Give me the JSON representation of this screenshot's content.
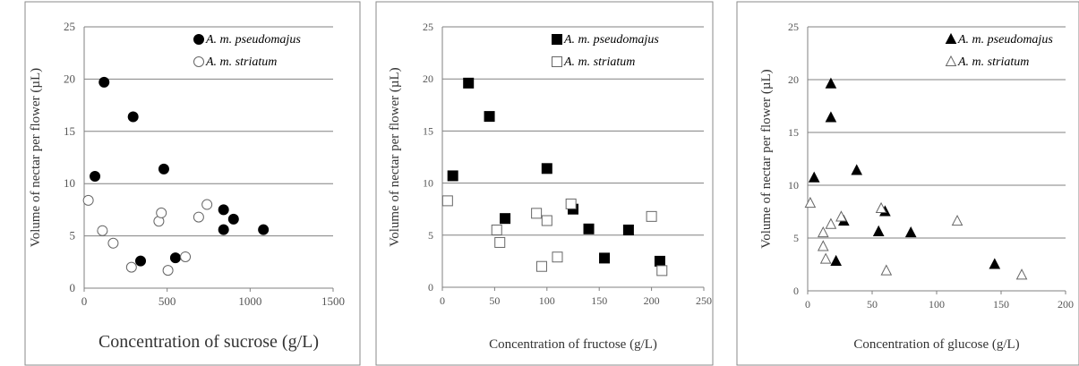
{
  "chart_data": [
    {
      "type": "scatter",
      "xlabel": "Concentration of sucrose (g/L)",
      "ylabel": "Volume of nectar per flower (µL)",
      "xlim": [
        0,
        1500
      ],
      "ylim": [
        0,
        25
      ],
      "xticks": [
        0,
        500,
        1000,
        1500
      ],
      "yticks": [
        0,
        5,
        10,
        15,
        20,
        25
      ],
      "grid": "horizontal",
      "legend_position": "top-right",
      "series": [
        {
          "name": "A. m. pseudomajus",
          "marker": "circle-filled",
          "points": [
            [
              65,
              10.7
            ],
            [
              120,
              19.7
            ],
            [
              295,
              16.4
            ],
            [
              480,
              11.4
            ],
            [
              840,
              7.5
            ],
            [
              900,
              6.6
            ],
            [
              840,
              5.6
            ],
            [
              1080,
              5.6
            ],
            [
              550,
              2.9
            ],
            [
              340,
              2.6
            ]
          ]
        },
        {
          "name": "A. m. striatum",
          "marker": "circle-open",
          "points": [
            [
              25,
              8.4
            ],
            [
              110,
              5.5
            ],
            [
              175,
              4.3
            ],
            [
              285,
              2.0
            ],
            [
              450,
              6.4
            ],
            [
              465,
              7.2
            ],
            [
              505,
              1.7
            ],
            [
              610,
              3.0
            ],
            [
              690,
              6.8
            ],
            [
              740,
              8.0
            ]
          ]
        }
      ]
    },
    {
      "type": "scatter",
      "xlabel": "Concentration of fructose (g/L)",
      "ylabel": "Volume of nectar per flower (µL)",
      "xlim": [
        0,
        250
      ],
      "ylim": [
        0,
        25
      ],
      "xticks": [
        0,
        50,
        100,
        150,
        200,
        250
      ],
      "yticks": [
        0,
        5,
        10,
        15,
        20,
        25
      ],
      "grid": "horizontal",
      "legend_position": "top-right",
      "series": [
        {
          "name": "A. m. pseudomajus",
          "marker": "square-filled",
          "points": [
            [
              10,
              10.7
            ],
            [
              25,
              19.6
            ],
            [
              45,
              16.4
            ],
            [
              100,
              11.4
            ],
            [
              125,
              7.5
            ],
            [
              140,
              5.6
            ],
            [
              60,
              6.6
            ],
            [
              178,
              5.5
            ],
            [
              155,
              2.8
            ],
            [
              208,
              2.5
            ]
          ]
        },
        {
          "name": "A. m. striatum",
          "marker": "square-open",
          "points": [
            [
              5,
              8.3
            ],
            [
              52,
              5.5
            ],
            [
              55,
              4.3
            ],
            [
              90,
              7.1
            ],
            [
              100,
              6.4
            ],
            [
              123,
              8.0
            ],
            [
              95,
              2.0
            ],
            [
              110,
              2.9
            ],
            [
              200,
              6.8
            ],
            [
              210,
              1.6
            ]
          ]
        }
      ]
    },
    {
      "type": "scatter",
      "xlabel": "Concentration of glucose (g/L)",
      "ylabel": "Volume of nectar per flower (µL)",
      "xlim": [
        0,
        200
      ],
      "ylim": [
        0,
        25
      ],
      "xticks": [
        0,
        50,
        100,
        150,
        200
      ],
      "yticks": [
        0,
        5,
        10,
        15,
        20,
        25
      ],
      "grid": "horizontal",
      "legend_position": "top-right",
      "series": [
        {
          "name": "A. m. pseudomajus",
          "marker": "triangle-filled",
          "points": [
            [
              5,
              10.7
            ],
            [
              18,
              19.6
            ],
            [
              18,
              16.4
            ],
            [
              38,
              11.4
            ],
            [
              60,
              7.5
            ],
            [
              28,
              6.6
            ],
            [
              55,
              5.6
            ],
            [
              80,
              5.5
            ],
            [
              22,
              2.8
            ],
            [
              145,
              2.5
            ]
          ]
        },
        {
          "name": "A. m. striatum",
          "marker": "triangle-open",
          "points": [
            [
              2,
              8.3
            ],
            [
              12,
              5.5
            ],
            [
              12,
              4.2
            ],
            [
              14,
              3.0
            ],
            [
              18,
              6.3
            ],
            [
              26,
              7.0
            ],
            [
              57,
              7.8
            ],
            [
              61,
              1.9
            ],
            [
              116,
              6.6
            ],
            [
              166,
              1.5
            ]
          ]
        }
      ]
    }
  ]
}
